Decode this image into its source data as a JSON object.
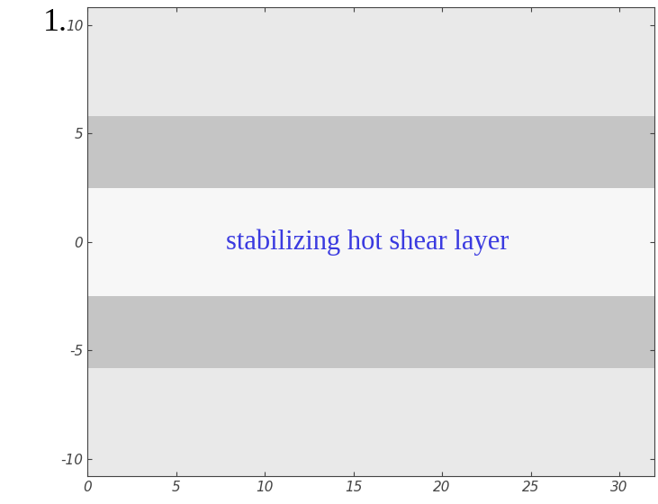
{
  "chart_data": {
    "type": "image",
    "xlim": [
      0,
      32
    ],
    "ylim": [
      -10.8,
      10.8
    ],
    "xticks": [
      0,
      5,
      10,
      15,
      20,
      25,
      30
    ],
    "yticks": [
      -10,
      -5,
      0,
      5,
      10
    ],
    "regions": [
      {
        "y": [
          2.5,
          5.8
        ],
        "color": "#8a8a8a"
      },
      {
        "y": [
          -5.8,
          -2.5
        ],
        "color": "#8a8a8a"
      },
      {
        "y": [
          5.8,
          10.8
        ],
        "color": "#d8d8d8"
      },
      {
        "y": [
          -10.8,
          -5.8
        ],
        "color": "#d8d8d8"
      }
    ],
    "annotations": [
      {
        "text": "stabilizing hot shear layer",
        "x": 15.8,
        "y": 0,
        "color": "#3a3ae0"
      }
    ],
    "corner_text": "1."
  }
}
